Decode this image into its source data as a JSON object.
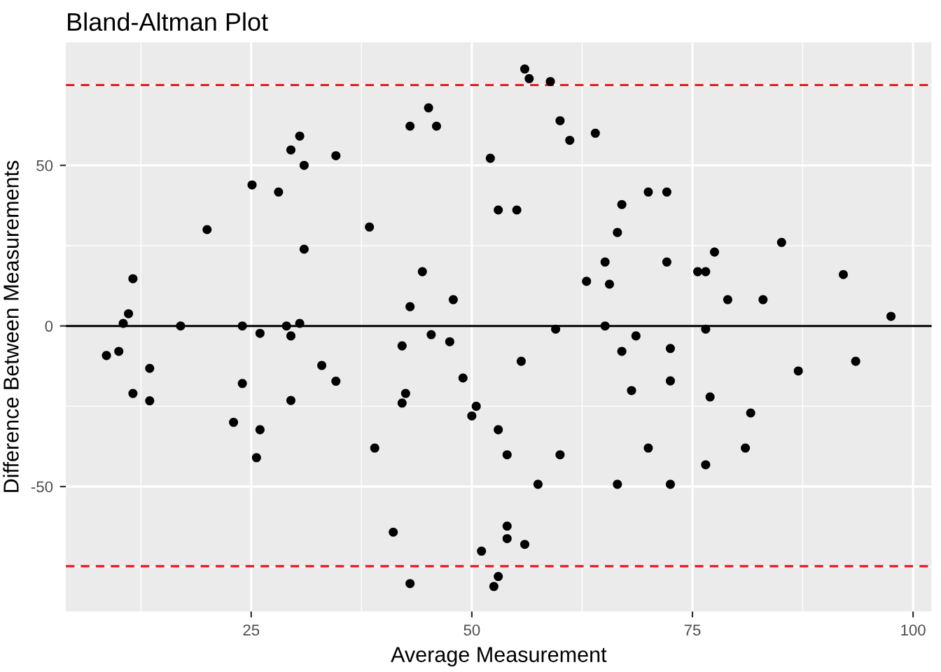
{
  "chart_data": {
    "type": "scatter",
    "title": "Bland-Altman Plot",
    "xlabel": "Average Measurement",
    "ylabel": "Difference Between Measurements",
    "xlim": [
      4.0,
      102.1
    ],
    "ylim": [
      -88.9,
      88.3
    ],
    "xticks": [
      25,
      50,
      75,
      100
    ],
    "yticks": [
      -50,
      0,
      50
    ],
    "grid": true,
    "marker": "circle",
    "ref_lines": [
      {
        "axis": "y",
        "value": 0,
        "label": null,
        "color": "#000000",
        "line_style": "solid"
      },
      {
        "axis": "y",
        "value": 75,
        "label": null,
        "color": "#e41a1c",
        "line_style": "dashed"
      },
      {
        "axis": "y",
        "value": -74.8,
        "label": null,
        "color": "#e41a1c",
        "line_style": "dashed"
      }
    ],
    "series": [
      {
        "color": "#000000",
        "x": [
          8.6,
          10.0,
          10.5,
          11.1,
          11.6,
          11.6,
          13.5,
          13.5,
          17.0,
          20.0,
          23.0,
          24.0,
          24.0,
          25.1,
          25.6,
          26.0,
          26.0,
          28.1,
          29.5,
          29.0,
          29.5,
          29.5,
          30.5,
          30.5,
          31.0,
          31.0,
          33.0,
          34.6,
          34.6,
          38.4,
          39.0,
          41.1,
          42.1,
          42.5,
          42.1,
          43.0,
          43.0,
          43.0,
          44.4,
          45.1,
          45.4,
          46.0,
          47.5,
          47.9,
          49.0,
          50.0,
          50.5,
          51.1,
          52.1,
          52.5,
          53.0,
          53.0,
          53.0,
          54.0,
          54.0,
          54.0,
          55.1,
          55.6,
          56.0,
          56.0,
          56.5,
          57.5,
          58.9,
          59.5,
          60.0,
          60.0,
          61.1,
          63.0,
          64.0,
          65.1,
          65.1,
          65.6,
          66.5,
          66.5,
          67.0,
          67.0,
          68.1,
          68.6,
          70.0,
          70.0,
          72.1,
          72.1,
          72.5,
          72.5,
          72.5,
          75.6,
          76.5,
          76.5,
          76.5,
          77.0,
          77.5,
          79.0,
          81.0,
          81.6,
          83.0,
          85.1,
          87.0,
          92.1,
          93.5,
          97.5
        ],
        "values": [
          -9.2,
          -7.9,
          0.8,
          3.8,
          14.7,
          -21.0,
          -13.2,
          -23.3,
          0,
          30.0,
          -30.0,
          0,
          -17.9,
          43.9,
          -41.0,
          -2.3,
          -32.3,
          41.7,
          54.8,
          0,
          -3.1,
          -23.2,
          59.1,
          0.8,
          50.0,
          23.9,
          -12.3,
          -17.2,
          53.0,
          30.8,
          -38.0,
          -64.2,
          -24.0,
          -21.0,
          -6.2,
          6.0,
          62.2,
          -80.2,
          16.9,
          67.9,
          -2.7,
          62.2,
          -4.9,
          8.2,
          -16.2,
          -28.0,
          -25.0,
          -70.1,
          52.2,
          -81.1,
          -32.3,
          36.1,
          -78.0,
          -62.3,
          -66.2,
          -40.1,
          36.1,
          -11.0,
          -68.0,
          80.0,
          77.0,
          -49.3,
          76.1,
          -1.0,
          63.9,
          -40.1,
          57.8,
          13.9,
          60.0,
          19.9,
          0,
          13.0,
          29.1,
          -49.3,
          37.8,
          -7.9,
          -20.1,
          -3.1,
          -38.0,
          41.7,
          41.7,
          19.9,
          -7.0,
          -17.1,
          -49.3,
          16.9,
          16.9,
          -1.0,
          -43.2,
          -22.1,
          23.0,
          8.2,
          -38.0,
          -27.1,
          8.2,
          26.0,
          -14.0,
          16.0,
          -11.0,
          3.0
        ]
      }
    ]
  }
}
